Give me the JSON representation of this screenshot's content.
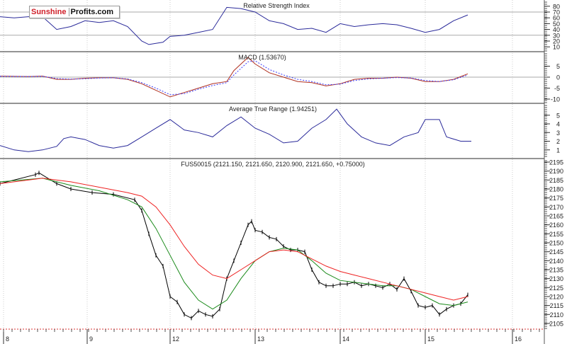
{
  "logo": {
    "part1": "Sunshine",
    "part2": "Profits.com"
  },
  "colors": {
    "rsi": "#2a2a9a",
    "macd": "#b03020",
    "signal": "#3a3aff",
    "atr": "#2a2a9a",
    "price": "#000000",
    "ma_fast": "#1a8a1a",
    "ma_slow": "#ee2222",
    "grid": "#bbbbbb"
  },
  "chart_data": [
    {
      "type": "line",
      "title": "Relative Strength Index",
      "x_unit": "bar",
      "yticks": [
        10,
        20,
        30,
        40,
        50,
        60,
        70,
        80
      ],
      "ylim": [
        0,
        90
      ],
      "reference_lines": [
        30,
        70
      ],
      "series": [
        {
          "name": "RSI",
          "x": [
            0,
            2,
            4,
            6,
            8,
            10,
            12,
            14,
            16,
            18,
            20,
            21,
            23,
            24,
            26,
            28,
            30,
            32,
            34,
            36,
            38,
            40,
            42,
            44,
            46,
            48,
            50,
            52,
            54,
            56,
            58,
            60,
            62,
            64,
            66
          ],
          "values": [
            62,
            60,
            62,
            62,
            40,
            45,
            55,
            52,
            55,
            45,
            20,
            14,
            18,
            28,
            30,
            35,
            40,
            78,
            76,
            70,
            55,
            50,
            40,
            42,
            35,
            50,
            45,
            48,
            50,
            48,
            42,
            35,
            40,
            55,
            65
          ]
        }
      ]
    },
    {
      "type": "line",
      "title": "MACD (1.53670)",
      "x_unit": "bar",
      "yticks": [
        -10,
        -5,
        0,
        5
      ],
      "ylim": [
        -11,
        8
      ],
      "reference_lines": [
        0
      ],
      "series": [
        {
          "name": "MACD",
          "x": [
            0,
            4,
            6,
            8,
            10,
            12,
            14,
            16,
            18,
            20,
            22,
            24,
            26,
            28,
            30,
            32,
            33,
            34,
            35,
            36,
            38,
            40,
            42,
            44,
            46,
            48,
            50,
            52,
            54,
            56,
            58,
            60,
            62,
            64,
            66
          ],
          "values": [
            0.5,
            0.3,
            0.5,
            -1,
            -1,
            -0.5,
            -0.3,
            -0.3,
            -1,
            -3,
            -6,
            -9,
            -7,
            -5,
            -3,
            -2,
            3,
            6,
            9,
            6,
            2,
            0,
            -2,
            -2.5,
            -4,
            -3,
            -1,
            -0.5,
            -0.5,
            0,
            -0.5,
            -2,
            -2,
            -1,
            1.5
          ]
        },
        {
          "name": "Signal",
          "x": [
            0,
            4,
            6,
            8,
            10,
            12,
            14,
            16,
            18,
            20,
            22,
            24,
            26,
            28,
            30,
            32,
            33,
            34,
            35,
            36,
            38,
            40,
            42,
            44,
            46,
            48,
            50,
            52,
            54,
            56,
            58,
            60,
            62,
            64,
            66
          ],
          "values": [
            0.4,
            0.3,
            0.4,
            -0.6,
            -0.9,
            -0.7,
            -0.4,
            -0.3,
            -0.8,
            -2.5,
            -5,
            -8,
            -7.5,
            -5.5,
            -3.8,
            -2.5,
            1,
            4,
            7,
            7.5,
            3.5,
            1,
            -1,
            -2,
            -3.5,
            -3.2,
            -1.5,
            -0.8,
            -0.5,
            -0.2,
            -0.4,
            -1.5,
            -2,
            -1.2,
            1
          ]
        }
      ]
    },
    {
      "type": "line",
      "title": "Average True Range (1.94251)",
      "x_unit": "bar",
      "yticks": [
        1,
        2,
        3,
        4,
        5
      ],
      "ylim": [
        0,
        6.2
      ],
      "series": [
        {
          "name": "ATR",
          "x": [
            0,
            2,
            4,
            6,
            8,
            9,
            10,
            12,
            14,
            16,
            18,
            20,
            22,
            24,
            26,
            28,
            30,
            32,
            34,
            36,
            38,
            40,
            42,
            44,
            46,
            47.5,
            49,
            51,
            53,
            55,
            57,
            59,
            60,
            62,
            63,
            65,
            66.5
          ],
          "values": [
            1.5,
            1,
            0.8,
            1,
            1.4,
            2.3,
            2.5,
            2.2,
            1.5,
            1.2,
            1.5,
            2.5,
            3.5,
            4.5,
            3.3,
            3,
            2.5,
            3.8,
            4.8,
            3.5,
            2.8,
            1.8,
            2,
            3.5,
            4.5,
            5.7,
            4,
            2.5,
            1.8,
            1.5,
            2.5,
            3,
            4.5,
            4.5,
            2.5,
            2,
            2
          ]
        }
      ]
    },
    {
      "type": "line",
      "title": "FUS50015 (2121.150, 2121.650, 2120.900, 2121.650, +0.75000)",
      "x_unit": "bar",
      "xtick_labels": [
        "8",
        "9",
        "12",
        "13",
        "14",
        "15",
        "16"
      ],
      "xtick_positions": [
        0.5,
        12.3,
        24,
        36,
        48,
        60,
        72.3
      ],
      "yticks": [
        2105,
        2110,
        2115,
        2120,
        2125,
        2130,
        2135,
        2140,
        2145,
        2150,
        2155,
        2160,
        2165,
        2170,
        2175,
        2180,
        2185,
        2190,
        2195
      ],
      "ylim": [
        2101,
        2197
      ],
      "series": [
        {
          "name": "Price",
          "x": [
            0,
            5,
            5.5,
            8,
            10,
            13,
            16,
            19,
            20,
            21,
            22,
            23,
            24,
            25,
            26,
            27,
            28,
            29,
            30,
            31,
            32,
            33,
            34,
            35,
            35.5,
            36,
            37,
            38,
            39,
            40,
            41,
            42,
            43,
            44,
            45,
            46,
            47,
            48,
            49,
            50,
            51,
            52,
            53,
            54,
            55,
            56,
            57,
            58,
            59,
            60,
            61,
            62,
            63,
            64,
            65,
            66
          ],
          "values": [
            2183,
            2188,
            2189,
            2183,
            2180,
            2178,
            2177,
            2174,
            2168,
            2155,
            2143,
            2137,
            2120,
            2117,
            2110,
            2108,
            2112,
            2110,
            2109,
            2113,
            2130,
            2140,
            2150,
            2160,
            2162,
            2157,
            2156,
            2153,
            2152,
            2148,
            2146,
            2146,
            2145,
            2135,
            2128,
            2126,
            2126,
            2127,
            2127,
            2128,
            2126,
            2127,
            2126,
            2125,
            2127,
            2124,
            2130,
            2123,
            2115,
            2114,
            2115,
            2110,
            2113,
            2115,
            2116,
            2121
          ]
        },
        {
          "name": "Fast MA",
          "x": [
            0,
            6,
            10,
            14,
            18,
            20,
            22,
            24,
            26,
            28,
            30,
            32,
            34,
            36,
            38,
            40,
            42,
            44,
            46,
            48,
            50,
            52,
            54,
            56,
            58,
            60,
            62,
            64,
            66
          ],
          "values": [
            2184,
            2186,
            2182,
            2179,
            2174,
            2170,
            2158,
            2143,
            2128,
            2118,
            2113,
            2118,
            2130,
            2140,
            2145,
            2147,
            2146,
            2140,
            2133,
            2129,
            2128,
            2127,
            2126,
            2126,
            2124,
            2120,
            2116,
            2115,
            2117
          ]
        },
        {
          "name": "Slow MA",
          "x": [
            0,
            6,
            10,
            14,
            18,
            20,
            22,
            24,
            26,
            28,
            30,
            32,
            34,
            36,
            38,
            40,
            42,
            44,
            46,
            48,
            50,
            52,
            54,
            56,
            58,
            60,
            62,
            64,
            66
          ],
          "values": [
            2183,
            2186,
            2184,
            2181,
            2178,
            2176,
            2170,
            2160,
            2148,
            2138,
            2132,
            2130,
            2135,
            2140,
            2145,
            2146,
            2145,
            2141,
            2137,
            2134,
            2132,
            2130,
            2128,
            2126,
            2124,
            2122,
            2120,
            2118,
            2120
          ]
        }
      ]
    }
  ]
}
